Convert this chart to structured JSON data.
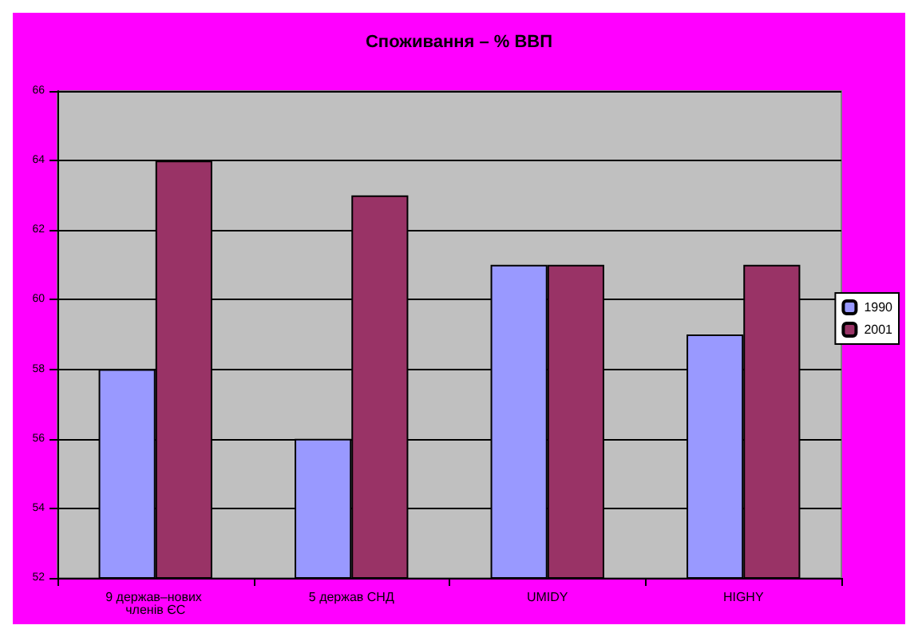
{
  "chart_data": {
    "type": "bar",
    "title": "Споживання – % ВВП",
    "categories": [
      "9 держав–нових членів ЄС",
      "5 держав СНД",
      "UMIDY",
      "HIGHY"
    ],
    "series": [
      {
        "name": "1990",
        "color": "#9999ff",
        "values": [
          58,
          56,
          61,
          59
        ]
      },
      {
        "name": "2001",
        "color": "#993366",
        "values": [
          64,
          63,
          61,
          61
        ]
      }
    ],
    "ylim": [
      52,
      66
    ],
    "yticks": [
      52,
      54,
      56,
      58,
      60,
      62,
      64,
      66
    ],
    "grid": "y",
    "legend": "right"
  }
}
